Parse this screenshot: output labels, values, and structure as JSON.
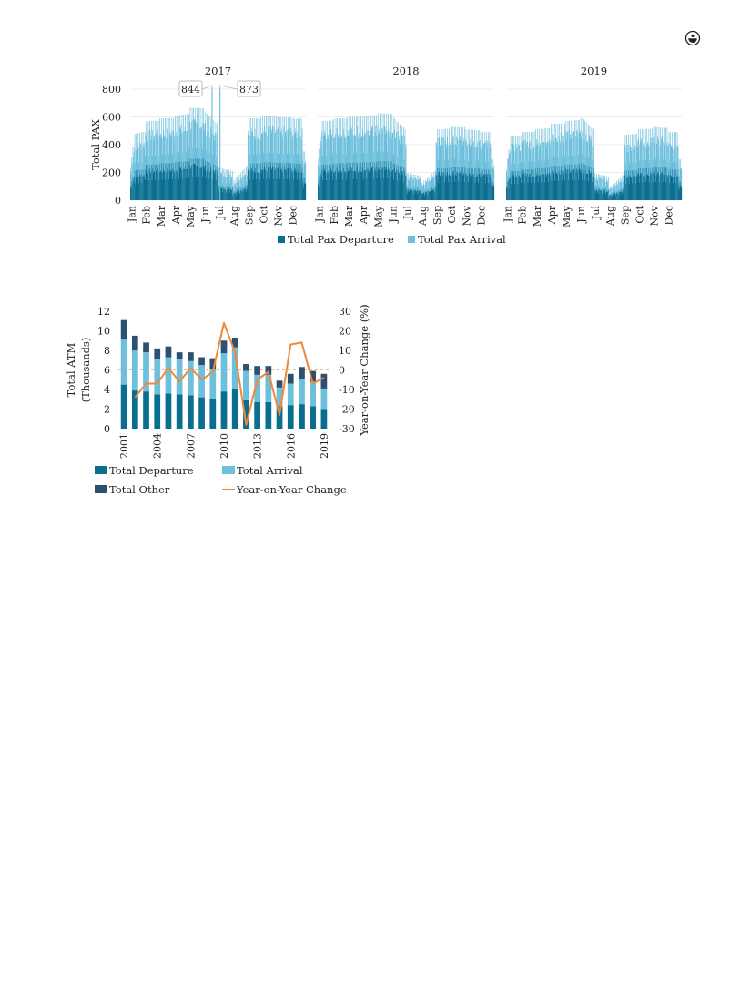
{
  "page": {
    "icon": "circle-emblem-icon"
  },
  "colors": {
    "departure": "#0a6e91",
    "arrival": "#6dbfdc",
    "other": "#2d5070",
    "yoy": "#f0883a",
    "grid": "#e6e6e6"
  },
  "chart_data": [
    {
      "type": "area",
      "panels": [
        "2017",
        "2018",
        "2019"
      ],
      "ylabel": "Total PAX",
      "ylim": [
        0,
        800
      ],
      "yticks": [
        0,
        200,
        400,
        600,
        800
      ],
      "month_ticks": [
        "Jan",
        "Feb",
        "Mar",
        "Apr",
        "May",
        "Jun",
        "Jul",
        "Aug",
        "Sep",
        "Oct",
        "Nov",
        "Dec"
      ],
      "series": [
        {
          "name": "Total Pax Departure",
          "color": "#0a6e91"
        },
        {
          "name": "Total Pax Arrival",
          "color": "#6dbfdc"
        }
      ],
      "monthly_peak_total": {
        "2017": [
          480,
          580,
          600,
          620,
          680,
          660,
          240,
          140,
          600,
          620,
          610,
          600
        ],
        "2018": [
          580,
          600,
          610,
          620,
          640,
          620,
          200,
          120,
          520,
          540,
          520,
          500
        ],
        "2019": [
          470,
          500,
          520,
          560,
          580,
          620,
          200,
          90,
          480,
          520,
          540,
          500
        ]
      },
      "departure_share": 0.45,
      "annotations": [
        {
          "panel": "2017",
          "label": "844",
          "value": 844,
          "month": "Jun"
        },
        {
          "panel": "2017",
          "label": "873",
          "value": 873,
          "month": "Jul"
        }
      ]
    },
    {
      "type": "bar",
      "stacked": true,
      "categories": [
        "2001",
        "2002",
        "2003",
        "2004",
        "2005",
        "2006",
        "2007",
        "2008",
        "2009",
        "2010",
        "2011",
        "2012",
        "2013",
        "2014",
        "2015",
        "2016",
        "2017",
        "2018",
        "2019"
      ],
      "x_tick_labels": [
        "2001",
        "2004",
        "2007",
        "2010",
        "2013",
        "2016",
        "2019"
      ],
      "ylabel": "Total ATM (Thousands)",
      "ylim": [
        0,
        12
      ],
      "yticks": [
        0,
        2,
        4,
        6,
        8,
        10,
        12
      ],
      "y2label": "Year-on-Year Change (%)",
      "y2lim": [
        -30,
        30
      ],
      "y2ticks": [
        -30,
        -20,
        -10,
        0,
        10,
        20,
        30
      ],
      "series": [
        {
          "name": "Total Departure",
          "values": [
            4.5,
            3.9,
            3.8,
            3.5,
            3.6,
            3.5,
            3.4,
            3.2,
            3.0,
            3.8,
            4.0,
            2.9,
            2.7,
            2.7,
            2.3,
            2.4,
            2.5,
            2.3,
            2.0
          ]
        },
        {
          "name": "Total Arrival",
          "values": [
            4.6,
            4.1,
            4.0,
            3.6,
            3.7,
            3.6,
            3.5,
            3.3,
            3.1,
            3.9,
            4.3,
            3.0,
            2.8,
            2.8,
            1.9,
            2.2,
            2.6,
            2.5,
            2.1
          ]
        },
        {
          "name": "Total Other",
          "values": [
            2.0,
            1.5,
            1.0,
            1.1,
            1.1,
            0.7,
            0.9,
            0.8,
            1.1,
            1.3,
            1.0,
            0.7,
            0.9,
            0.9,
            0.7,
            1.0,
            1.2,
            1.1,
            1.5
          ]
        }
      ],
      "line_series": {
        "name": "Year-on-Year Change",
        "values": [
          null,
          -14,
          -7,
          -7,
          1,
          -6,
          1,
          -5,
          -1,
          24,
          9,
          -28,
          -5,
          -1,
          -23,
          13,
          14,
          -7,
          -4
        ]
      }
    }
  ]
}
